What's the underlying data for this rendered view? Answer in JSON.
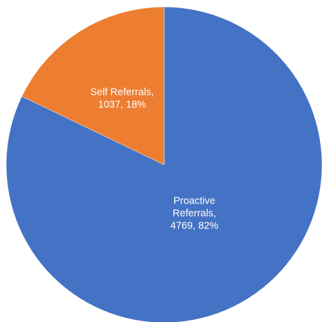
{
  "chart_data": {
    "type": "pie",
    "title": "",
    "start_angle_deg": 0,
    "direction": "clockwise",
    "slices": [
      {
        "name": "Proactive Referrals",
        "value": 4769,
        "percent": 82,
        "color": "#4472C4",
        "label_lines": [
          "Proactive",
          "Referrals,",
          "4769, 82%"
        ]
      },
      {
        "name": "Self Referrals",
        "value": 1037,
        "percent": 18,
        "color": "#ED7D31",
        "label_lines": [
          "Self Referrals,",
          "1037, 18%"
        ]
      }
    ],
    "legend": "none"
  }
}
